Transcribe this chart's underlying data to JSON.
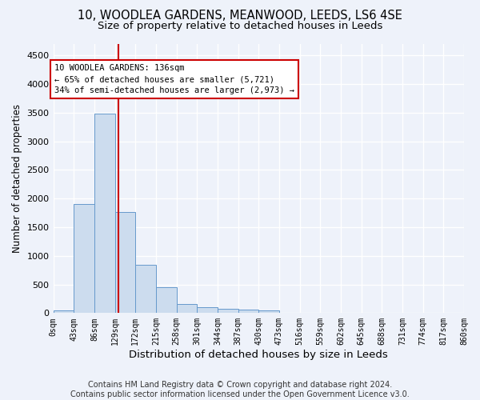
{
  "title_line1": "10, WOODLEA GARDENS, MEANWOOD, LEEDS, LS6 4SE",
  "title_line2": "Size of property relative to detached houses in Leeds",
  "xlabel": "Distribution of detached houses by size in Leeds",
  "ylabel": "Number of detached properties",
  "bar_color": "#ccdcee",
  "bar_edge_color": "#6699cc",
  "bar_heights": [
    50,
    1900,
    3480,
    1770,
    840,
    455,
    160,
    100,
    70,
    55,
    40,
    0,
    0,
    0,
    0,
    0,
    0,
    0,
    0,
    0
  ],
  "tick_labels": [
    "0sqm",
    "43sqm",
    "86sqm",
    "129sqm",
    "172sqm",
    "215sqm",
    "258sqm",
    "301sqm",
    "344sqm",
    "387sqm",
    "430sqm",
    "473sqm",
    "516sqm",
    "559sqm",
    "602sqm",
    "645sqm",
    "688sqm",
    "731sqm",
    "774sqm",
    "817sqm",
    "860sqm"
  ],
  "ylim": [
    0,
    4700
  ],
  "yticks": [
    0,
    500,
    1000,
    1500,
    2000,
    2500,
    3000,
    3500,
    4000,
    4500
  ],
  "property_size": 136,
  "bin_width": 43,
  "vline_color": "#cc0000",
  "annotation_line1": "10 WOODLEA GARDENS: 136sqm",
  "annotation_line2": "← 65% of detached houses are smaller (5,721)",
  "annotation_line3": "34% of semi-detached houses are larger (2,973) →",
  "annotation_box_color": "#ffffff",
  "annotation_box_edge": "#cc0000",
  "footer_line1": "Contains HM Land Registry data © Crown copyright and database right 2024.",
  "footer_line2": "Contains public sector information licensed under the Open Government Licence v3.0.",
  "background_color": "#eef2fa",
  "grid_color": "#ffffff",
  "title1_fontsize": 10.5,
  "title2_fontsize": 9.5,
  "xlabel_fontsize": 9.5,
  "ylabel_fontsize": 8.5,
  "footer_fontsize": 7
}
